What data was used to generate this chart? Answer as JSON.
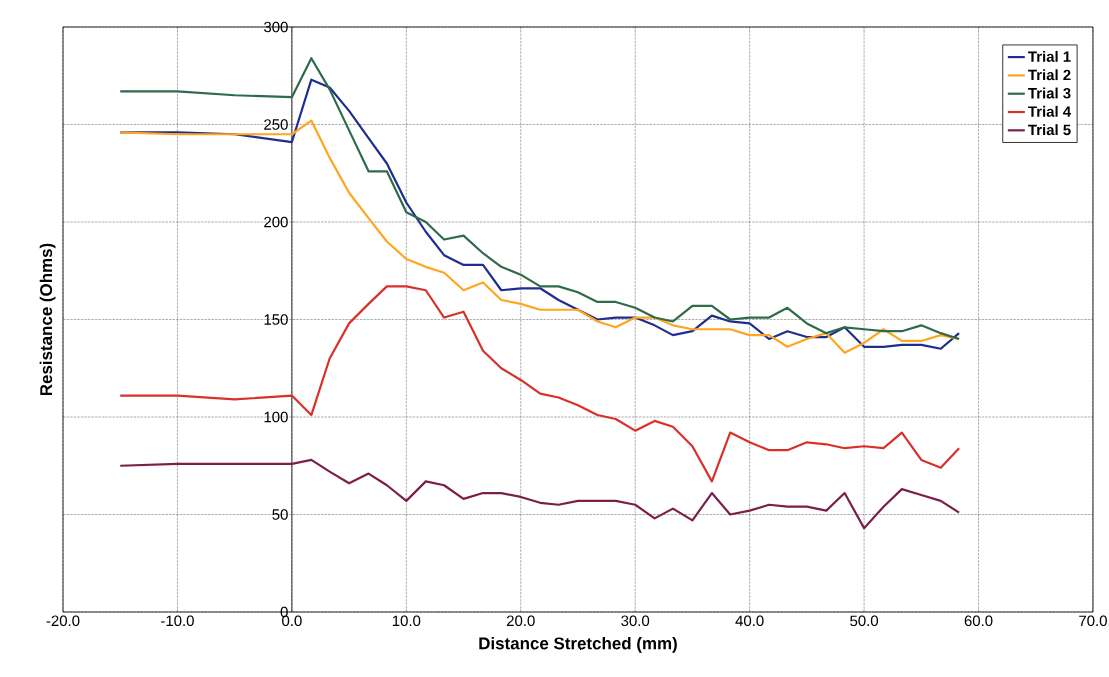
{
  "chart_data": {
    "type": "line",
    "xlabel": "Distance Stretched (mm)",
    "ylabel": "Resistance (Ohms)",
    "x": [
      -15,
      -10,
      -5,
      0,
      1.7,
      3.3,
      5,
      6.7,
      8.3,
      10,
      11.7,
      13.3,
      15,
      16.7,
      18.3,
      20,
      21.7,
      23.3,
      25,
      26.7,
      28.3,
      30,
      31.7,
      33.3,
      35,
      36.7,
      38.3,
      40,
      41.7,
      43.3,
      45,
      46.7,
      48.3,
      50,
      51.7,
      53.3,
      55,
      56.7,
      58.3
    ],
    "series": [
      {
        "name": "Trial 1",
        "color": "#1f2d8f",
        "values": [
          246,
          246,
          245,
          241,
          273,
          269,
          257,
          243,
          230,
          210,
          195,
          183,
          178,
          178,
          165,
          166,
          166,
          160,
          155,
          150,
          151,
          151,
          147,
          142,
          144,
          152,
          149,
          148,
          140,
          144,
          141,
          141,
          146,
          136,
          136,
          137,
          137,
          135,
          143
        ]
      },
      {
        "name": "Trial 2",
        "color": "#ffa51f",
        "values": [
          246,
          245,
          245,
          245,
          252,
          233,
          215,
          202,
          190,
          181,
          177,
          174,
          165,
          169,
          160,
          158,
          155,
          155,
          155,
          149,
          146,
          151,
          151,
          147,
          145,
          145,
          145,
          142,
          142,
          136,
          140,
          143,
          133,
          138,
          145,
          139,
          139,
          142,
          140
        ]
      },
      {
        "name": "Trial 3",
        "color": "#2e6b4a",
        "values": [
          267,
          267,
          265,
          264,
          284,
          268,
          247,
          226,
          226,
          205,
          200,
          191,
          193,
          184,
          177,
          173,
          167,
          167,
          164,
          159,
          159,
          156,
          151,
          149,
          157,
          157,
          150,
          151,
          151,
          156,
          148,
          143,
          146,
          145,
          144,
          144,
          147,
          143,
          140
        ]
      },
      {
        "name": "Trial 4",
        "color": "#d9302a",
        "values": [
          111,
          111,
          109,
          111,
          101,
          130,
          148,
          158,
          167,
          167,
          165,
          151,
          154,
          134,
          125,
          119,
          112,
          110,
          106,
          101,
          99,
          93,
          98,
          95,
          85,
          67,
          92,
          87,
          83,
          83,
          87,
          86,
          84,
          85,
          84,
          92,
          78,
          74,
          84
        ]
      },
      {
        "name": "Trial 5",
        "color": "#7b1f4a",
        "values": [
          75,
          76,
          76,
          76,
          78,
          72,
          66,
          71,
          65,
          57,
          67,
          65,
          58,
          61,
          61,
          59,
          56,
          55,
          57,
          57,
          57,
          55,
          48,
          53,
          47,
          61,
          50,
          52,
          55,
          54,
          54,
          52,
          61,
          43,
          54,
          63,
          60,
          57,
          51
        ]
      }
    ],
    "xlim": [
      -20,
      70
    ],
    "ylim": [
      0,
      300
    ],
    "xticks": [
      {
        "value": -20,
        "label": "-20.0"
      },
      {
        "value": -10,
        "label": "-10.0"
      },
      {
        "value": 0,
        "label": "0.0"
      },
      {
        "value": 10,
        "label": "10.0"
      },
      {
        "value": 20,
        "label": "20.0"
      },
      {
        "value": 30,
        "label": "30.0"
      },
      {
        "value": 40,
        "label": "40.0"
      },
      {
        "value": 50,
        "label": "50.0"
      },
      {
        "value": 60,
        "label": "60.0"
      },
      {
        "value": 70,
        "label": "70.0"
      }
    ],
    "yticks": [
      0,
      50,
      100,
      150,
      200,
      250,
      300
    ],
    "grid": true,
    "legend": "top right",
    "marker": "none",
    "line_style": "solid"
  }
}
